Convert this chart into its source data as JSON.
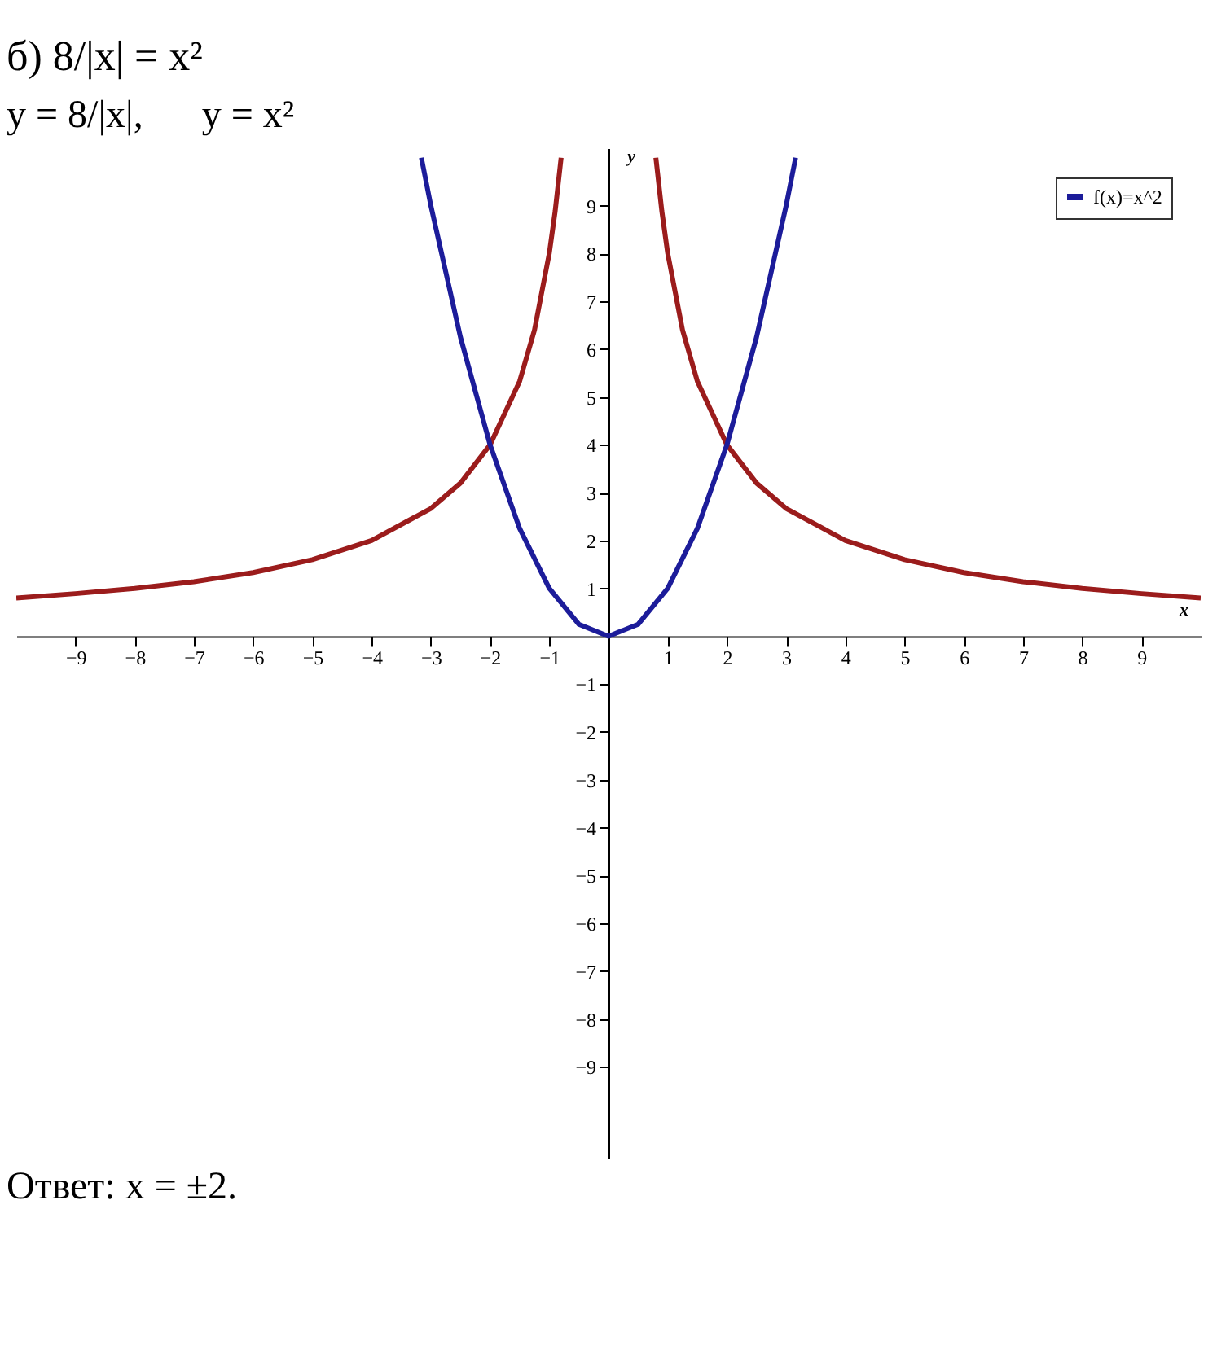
{
  "chart_data": {
    "type": "line",
    "title": "б) 8/|x| = x²",
    "subtitle": "y = 8/|x|,      y = x²",
    "xlabel": "x",
    "ylabel": "y",
    "annotations": [
      "Ответ: x = ±2."
    ],
    "xlim": [
      -10,
      10
    ],
    "ylim": [
      -10.9,
      10.2
    ],
    "xticks": [
      -9,
      -8,
      -7,
      -6,
      -5,
      -4,
      -3,
      -2,
      -1,
      1,
      2,
      3,
      4,
      5,
      6,
      7,
      8,
      9
    ],
    "yticks": [
      -9,
      -8,
      -7,
      -6,
      -5,
      -4,
      -3,
      -2,
      -1,
      1,
      2,
      3,
      4,
      5,
      6,
      7,
      8,
      9
    ],
    "grid": false,
    "legend": "top right",
    "marker": "none",
    "line_style": "solid",
    "series": [
      {
        "color": "#9b1c1c",
        "x": [
          -10,
          -9,
          -8,
          -7,
          -6,
          -5,
          -4,
          -3,
          -2.5,
          -2,
          -1.5,
          -1.25,
          -1,
          -0.9,
          -0.8,
          0,
          0.8,
          0.9,
          1,
          1.25,
          1.5,
          2,
          2.5,
          3,
          4,
          5,
          6,
          7,
          8,
          9,
          10
        ],
        "values": [
          0.8,
          0.89,
          1,
          1.14,
          1.33,
          1.6,
          2,
          2.67,
          3.2,
          4,
          5.33,
          6.4,
          8,
          8.89,
          10,
          null,
          10,
          8.89,
          8,
          6.4,
          5.33,
          4,
          3.2,
          2.67,
          2,
          1.6,
          1.33,
          1.14,
          1,
          0.89,
          0.8
        ]
      },
      {
        "name": "f(x)=x^2",
        "color": "#1c1c9a",
        "x": [
          -3.16,
          -3,
          -2.5,
          -2,
          -1.5,
          -1,
          -0.5,
          0,
          0.5,
          1,
          1.5,
          2,
          2.5,
          3,
          3.16
        ],
        "values": [
          10,
          9,
          6.25,
          4,
          2.25,
          1,
          0.25,
          0,
          0.25,
          1,
          2.25,
          4,
          6.25,
          9,
          10
        ]
      }
    ]
  }
}
